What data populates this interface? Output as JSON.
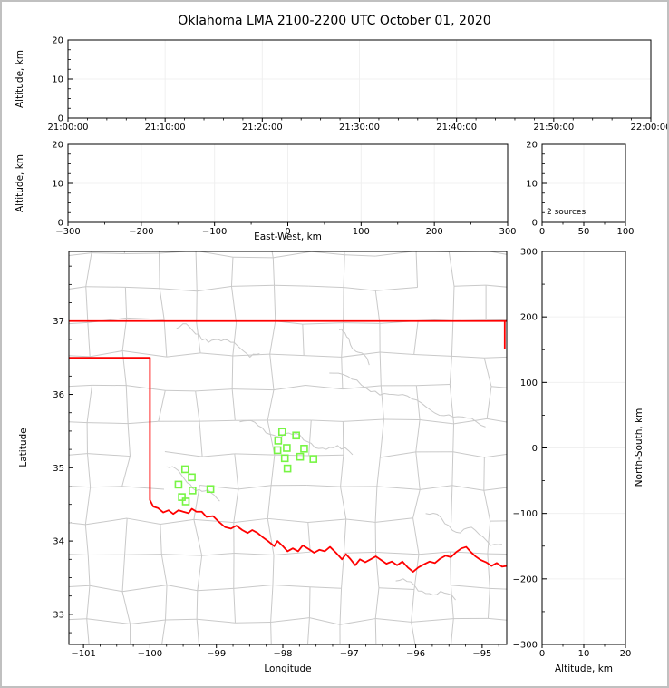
{
  "figure": {
    "border_color": "#c0c0c0",
    "background": "#ffffff"
  },
  "colors": {
    "axis": "#000000",
    "grid": "#f0f0f0",
    "county_lines": "#c9c9c9",
    "state_border": "#ff0000",
    "stations": "#77f544",
    "text": "#000000"
  },
  "chart_data": {
    "type": "scatter",
    "title": "Oklahoma LMA 2100-2200 UTC October 01, 2020",
    "sources_count": 2,
    "panels": {
      "time_height": {
        "ylabel": "Altitude, km",
        "xlim_seconds": [
          0,
          3600
        ],
        "ylim": [
          0,
          20
        ],
        "xticks": [
          {
            "v": 0,
            "label": "21:00:00"
          },
          {
            "v": 600,
            "label": "21:10:00"
          },
          {
            "v": 1200,
            "label": "21:20:00"
          },
          {
            "v": 1800,
            "label": "21:30:00"
          },
          {
            "v": 2400,
            "label": "21:40:00"
          },
          {
            "v": 3000,
            "label": "21:50:00"
          },
          {
            "v": 3600,
            "label": "22:00:00"
          }
        ],
        "yticks": [
          {
            "v": 0,
            "label": "0"
          },
          {
            "v": 10,
            "label": "10"
          },
          {
            "v": 20,
            "label": "20"
          }
        ],
        "points": []
      },
      "ew_height": {
        "xlabel": "East-West, km",
        "ylabel": "Altitude, km",
        "xlim": [
          -300,
          300
        ],
        "ylim": [
          0,
          20
        ],
        "xticks": [
          {
            "v": -300,
            "label": "−300"
          },
          {
            "v": -200,
            "label": "−200"
          },
          {
            "v": -100,
            "label": "−100"
          },
          {
            "v": 0,
            "label": "0"
          },
          {
            "v": 100,
            "label": "100"
          },
          {
            "v": 200,
            "label": "200"
          },
          {
            "v": 300,
            "label": "300"
          }
        ],
        "yticks": [
          {
            "v": 0,
            "label": "0"
          },
          {
            "v": 10,
            "label": "10"
          },
          {
            "v": 20,
            "label": "20"
          }
        ],
        "points": []
      },
      "alt_histogram": {
        "annotation": "2 sources",
        "xlim": [
          0,
          100
        ],
        "ylim": [
          0,
          20
        ],
        "xticks": [
          {
            "v": 0,
            "label": "0"
          },
          {
            "v": 50,
            "label": "50"
          },
          {
            "v": 100,
            "label": "100"
          }
        ],
        "yticks": [
          {
            "v": 0,
            "label": "0"
          },
          {
            "v": 10,
            "label": "10"
          },
          {
            "v": 20,
            "label": "20"
          }
        ],
        "points": []
      },
      "plan_view": {
        "xlabel": "Longitude",
        "ylabel": "Latitude",
        "xlim": [
          -101.22,
          -94.63
        ],
        "ylim": [
          32.59,
          37.95
        ],
        "xticks": [
          {
            "v": -101,
            "label": "−101"
          },
          {
            "v": -100,
            "label": "−100"
          },
          {
            "v": -99,
            "label": "−99"
          },
          {
            "v": -98,
            "label": "−98"
          },
          {
            "v": -97,
            "label": "−97"
          },
          {
            "v": -96,
            "label": "−96"
          },
          {
            "v": -95,
            "label": "−95"
          }
        ],
        "yticks": [
          {
            "v": 33,
            "label": "33"
          },
          {
            "v": 34,
            "label": "34"
          },
          {
            "v": 35,
            "label": "35"
          },
          {
            "v": 36,
            "label": "36"
          },
          {
            "v": 37,
            "label": "37"
          }
        ],
        "stations": [
          [
            -99.47,
            34.98
          ],
          [
            -99.37,
            34.87
          ],
          [
            -99.57,
            34.77
          ],
          [
            -99.36,
            34.69
          ],
          [
            -99.09,
            34.71
          ],
          [
            -99.52,
            34.6
          ],
          [
            -99.46,
            34.54
          ],
          [
            -98.01,
            35.49
          ],
          [
            -97.8,
            35.44
          ],
          [
            -98.07,
            35.37
          ],
          [
            -97.94,
            35.27
          ],
          [
            -98.08,
            35.24
          ],
          [
            -97.68,
            35.26
          ],
          [
            -97.74,
            35.15
          ],
          [
            -97.97,
            35.13
          ],
          [
            -97.54,
            35.12
          ],
          [
            -97.93,
            34.99
          ]
        ],
        "state_border": {
          "north": [
            [
              -101.22,
              37.0
            ],
            [
              -94.63,
              37.0
            ]
          ],
          "east": [
            [
              -94.66,
              37.0
            ],
            [
              -94.66,
              36.62
            ]
          ],
          "west_and_south": [
            [
              -101.22,
              36.5
            ],
            [
              -100.0,
              36.5
            ],
            [
              -100.0,
              34.56
            ],
            [
              -99.95,
              34.47
            ],
            [
              -99.88,
              34.45
            ],
            [
              -99.8,
              34.39
            ],
            [
              -99.72,
              34.42
            ],
            [
              -99.65,
              34.37
            ],
            [
              -99.57,
              34.42
            ],
            [
              -99.5,
              34.4
            ],
            [
              -99.42,
              34.38
            ],
            [
              -99.37,
              34.44
            ],
            [
              -99.3,
              34.4
            ],
            [
              -99.22,
              34.4
            ],
            [
              -99.15,
              34.33
            ],
            [
              -99.05,
              34.34
            ],
            [
              -98.96,
              34.26
            ],
            [
              -98.87,
              34.19
            ],
            [
              -98.78,
              34.17
            ],
            [
              -98.7,
              34.21
            ],
            [
              -98.61,
              34.15
            ],
            [
              -98.53,
              34.11
            ],
            [
              -98.46,
              34.15
            ],
            [
              -98.38,
              34.11
            ],
            [
              -98.3,
              34.05
            ],
            [
              -98.21,
              33.99
            ],
            [
              -98.13,
              33.93
            ],
            [
              -98.08,
              34.0
            ],
            [
              -98.0,
              33.93
            ],
            [
              -97.93,
              33.86
            ],
            [
              -97.85,
              33.9
            ],
            [
              -97.77,
              33.86
            ],
            [
              -97.7,
              33.94
            ],
            [
              -97.61,
              33.89
            ],
            [
              -97.53,
              33.84
            ],
            [
              -97.45,
              33.88
            ],
            [
              -97.37,
              33.86
            ],
            [
              -97.29,
              33.92
            ],
            [
              -97.2,
              33.84
            ],
            [
              -97.11,
              33.75
            ],
            [
              -97.05,
              33.82
            ],
            [
              -96.98,
              33.75
            ],
            [
              -96.91,
              33.67
            ],
            [
              -96.84,
              33.75
            ],
            [
              -96.76,
              33.71
            ],
            [
              -96.68,
              33.75
            ],
            [
              -96.6,
              33.79
            ],
            [
              -96.52,
              33.74
            ],
            [
              -96.44,
              33.69
            ],
            [
              -96.36,
              33.72
            ],
            [
              -96.28,
              33.67
            ],
            [
              -96.2,
              33.72
            ],
            [
              -96.12,
              33.64
            ],
            [
              -96.04,
              33.58
            ],
            [
              -95.96,
              33.64
            ],
            [
              -95.88,
              33.68
            ],
            [
              -95.79,
              33.72
            ],
            [
              -95.71,
              33.7
            ],
            [
              -95.63,
              33.76
            ],
            [
              -95.55,
              33.8
            ],
            [
              -95.47,
              33.78
            ],
            [
              -95.39,
              33.85
            ],
            [
              -95.31,
              33.9
            ],
            [
              -95.24,
              33.92
            ],
            [
              -95.17,
              33.85
            ],
            [
              -95.1,
              33.79
            ],
            [
              -95.02,
              33.74
            ],
            [
              -94.94,
              33.71
            ],
            [
              -94.86,
              33.66
            ],
            [
              -94.78,
              33.7
            ],
            [
              -94.7,
              33.65
            ],
            [
              -94.63,
              33.66
            ]
          ]
        }
      },
      "ns_height": {
        "xlabel": "Altitude, km",
        "ylabel": "North-South, km",
        "xlim": [
          0,
          20
        ],
        "ylim": [
          -300,
          300
        ],
        "xticks": [
          {
            "v": 0,
            "label": "0"
          },
          {
            "v": 10,
            "label": "10"
          },
          {
            "v": 20,
            "label": "20"
          }
        ],
        "yticks": [
          {
            "v": 300,
            "label": "300"
          },
          {
            "v": 200,
            "label": "200"
          },
          {
            "v": 100,
            "label": "100"
          },
          {
            "v": 0,
            "label": "0"
          },
          {
            "v": -100,
            "label": "−100"
          },
          {
            "v": -200,
            "label": "−200"
          },
          {
            "v": -300,
            "label": "−300"
          }
        ],
        "points": []
      }
    }
  }
}
